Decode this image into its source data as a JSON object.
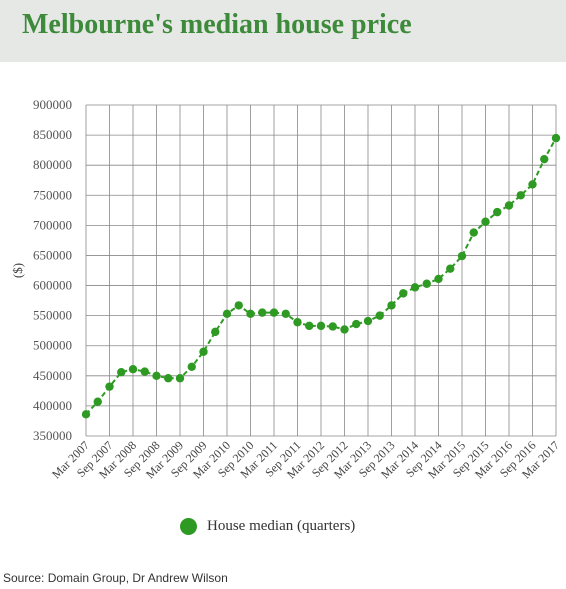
{
  "title": "Melbourne's median house price",
  "source": "Source: Domain Group, Dr Andrew Wilson",
  "colors": {
    "title": "#3d8a3a",
    "series": "#2f9a23",
    "banner_bg": "#e6e8e6",
    "grid": "#888888"
  },
  "chart_data": {
    "type": "line",
    "title": "Melbourne's median house price",
    "ylabel": "($)",
    "xlabel": "",
    "ylim": [
      350000,
      900000
    ],
    "yticks": [
      350000,
      400000,
      450000,
      500000,
      550000,
      600000,
      650000,
      700000,
      750000,
      800000,
      850000,
      900000
    ],
    "x": [
      "Mar 2007",
      "Jun 2007",
      "Sep 2007",
      "Dec 2007",
      "Mar 2008",
      "Jun 2008",
      "Sep 2008",
      "Dec 2008",
      "Mar 2009",
      "Jun 2009",
      "Sep 2009",
      "Dec 2009",
      "Mar 2010",
      "Jun 2010",
      "Sep 2010",
      "Dec 2010",
      "Mar 2011",
      "Jun 2011",
      "Sep 2011",
      "Dec 2011",
      "Mar 2012",
      "Jun 2012",
      "Sep 2012",
      "Dec 2012",
      "Mar 2013",
      "Jun 2013",
      "Sep 2013",
      "Dec 2013",
      "Mar 2014",
      "Jun 2014",
      "Sep 2014",
      "Dec 2014",
      "Mar 2015",
      "Jun 2015",
      "Sep 2015",
      "Dec 2015",
      "Mar 2016",
      "Jun 2016",
      "Sep 2016",
      "Dec 2016",
      "Mar 2017"
    ],
    "x_tick_labels": [
      "Mar 2007",
      "Sep 2007",
      "Mar 2008",
      "Sep 2008",
      "Mar 2009",
      "Sep 2009",
      "Mar 2010",
      "Sep 2010",
      "Mar 2011",
      "Sep 2011",
      "Mar 2012",
      "Sep 2012",
      "Mar 2013",
      "Sep 2013",
      "Mar 2014",
      "Sep 2014",
      "Mar 2015",
      "Sep 2015",
      "Mar 2016",
      "Sep 2016",
      "Mar 2017"
    ],
    "grid": true,
    "legend_position": "bottom",
    "series": [
      {
        "name": "House median (quarters)",
        "color": "#2f9a23",
        "values": [
          386000,
          407000,
          432000,
          456000,
          461000,
          457000,
          450000,
          446000,
          446000,
          465000,
          490000,
          523000,
          553000,
          567000,
          553000,
          555000,
          555000,
          553000,
          539000,
          533000,
          533000,
          532000,
          527000,
          536000,
          541000,
          550000,
          567000,
          587000,
          597000,
          603000,
          611000,
          628000,
          649000,
          688000,
          706000,
          722000,
          733000,
          750000,
          768000,
          810000,
          845000
        ]
      }
    ]
  }
}
